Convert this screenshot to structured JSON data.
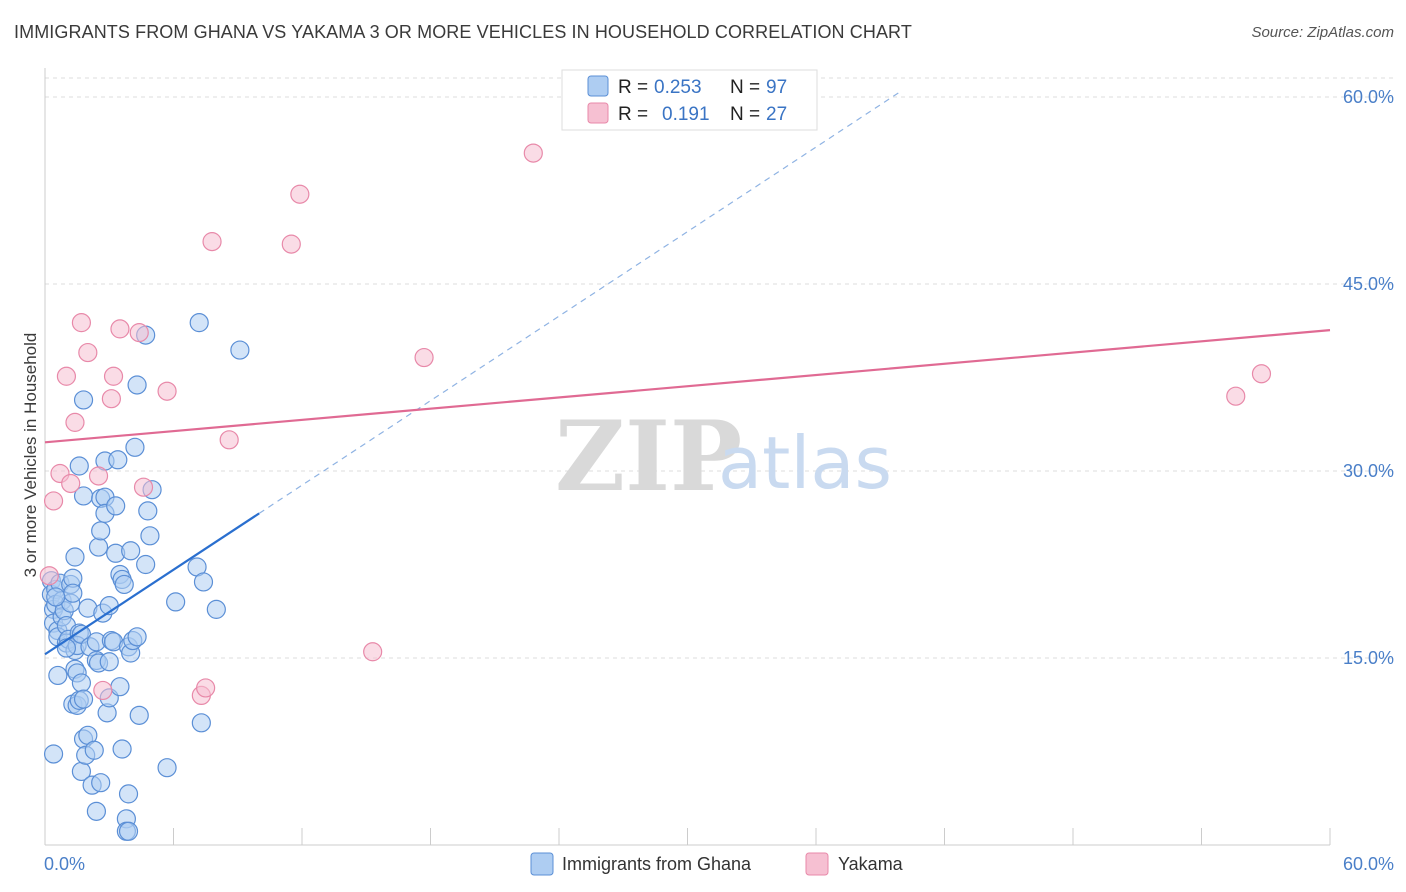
{
  "header": {
    "title": "IMMIGRANTS FROM GHANA VS YAKAMA 3 OR MORE VEHICLES IN HOUSEHOLD CORRELATION CHART",
    "source": "Source: ZipAtlas.com"
  },
  "watermark": {
    "zip": "ZIP",
    "atlas": "atlas"
  },
  "colors": {
    "ghana_fill": "#aecdf2",
    "ghana_stroke": "#5b8fd6",
    "ghana_line": "#2a6fcf",
    "yakama_fill": "#f6c0d2",
    "yakama_stroke": "#e889a9",
    "yakama_line": "#e06a93",
    "grid": "#dddddd",
    "axis_text": "#4a7fc8"
  },
  "legend": {
    "ghana": {
      "r_label": "R =",
      "r_value": "0.253",
      "n_label": "N =",
      "n_value": "97"
    },
    "yakama": {
      "r_label": "R =",
      "r_value": "0.191",
      "n_label": "N =",
      "n_value": "27"
    }
  },
  "chart_data": {
    "type": "scatter",
    "title": "IMMIGRANTS FROM GHANA VS YAKAMA 3 OR MORE VEHICLES IN HOUSEHOLD CORRELATION CHART",
    "xlabel": "",
    "ylabel": "3 or more Vehicles in Household",
    "xlim": [
      0,
      60
    ],
    "ylim": [
      0,
      63
    ],
    "x_tick_labels": [
      "0.0%",
      "60.0%"
    ],
    "y_ticks": [
      15,
      30,
      45,
      60
    ],
    "y_tick_labels": [
      "15.0%",
      "30.0%",
      "45.0%",
      "60.0%"
    ],
    "legend_position": "top-center",
    "bottom_legend": [
      "Immigrants from Ghana",
      "Yakama"
    ],
    "series": [
      {
        "name": "Immigrants from Ghana",
        "trend": {
          "x0": 0,
          "y0": 15.3,
          "x1": 10,
          "y1": 26.6,
          "dashed_to_x": 40
        },
        "points": [
          [
            0.3,
            21.2
          ],
          [
            0.3,
            20.1
          ],
          [
            0.4,
            18.9
          ],
          [
            0.4,
            17.8
          ],
          [
            0.5,
            20.5
          ],
          [
            0.5,
            19.3
          ],
          [
            0.6,
            17.2
          ],
          [
            0.6,
            16.7
          ],
          [
            0.7,
            21.0
          ],
          [
            0.8,
            19.6
          ],
          [
            0.8,
            18.3
          ],
          [
            0.9,
            18.8
          ],
          [
            1.0,
            17.6
          ],
          [
            1.0,
            16.2
          ],
          [
            1.1,
            16.5
          ],
          [
            1.2,
            20.9
          ],
          [
            1.2,
            19.4
          ],
          [
            1.3,
            21.4
          ],
          [
            1.4,
            15.6
          ],
          [
            1.4,
            14.1
          ],
          [
            1.3,
            11.3
          ],
          [
            1.5,
            13.8
          ],
          [
            1.5,
            11.2
          ],
          [
            0.4,
            7.3
          ],
          [
            0.6,
            13.6
          ],
          [
            1.3,
            20.2
          ],
          [
            1.4,
            23.1
          ],
          [
            1.6,
            30.4
          ],
          [
            1.6,
            17.0
          ],
          [
            1.5,
            16.0
          ],
          [
            1.7,
            16.9
          ],
          [
            1.7,
            13.0
          ],
          [
            1.6,
            11.6
          ],
          [
            1.8,
            11.7
          ],
          [
            1.7,
            5.9
          ],
          [
            1.8,
            28.0
          ],
          [
            1.8,
            8.5
          ],
          [
            1.9,
            7.2
          ],
          [
            2.0,
            8.8
          ],
          [
            2.0,
            19.0
          ],
          [
            2.1,
            15.9
          ],
          [
            2.2,
            4.8
          ],
          [
            2.3,
            7.6
          ],
          [
            2.4,
            2.7
          ],
          [
            2.4,
            16.3
          ],
          [
            2.4,
            14.8
          ],
          [
            2.5,
            14.6
          ],
          [
            2.5,
            23.9
          ],
          [
            2.6,
            25.2
          ],
          [
            2.6,
            5.0
          ],
          [
            2.6,
            27.8
          ],
          [
            2.7,
            18.6
          ],
          [
            2.8,
            27.9
          ],
          [
            2.8,
            26.6
          ],
          [
            2.8,
            30.8
          ],
          [
            2.9,
            10.6
          ],
          [
            3.0,
            14.7
          ],
          [
            3.0,
            11.8
          ],
          [
            3.0,
            19.2
          ],
          [
            1.8,
            35.7
          ],
          [
            3.1,
            16.4
          ],
          [
            3.2,
            16.3
          ],
          [
            3.3,
            23.4
          ],
          [
            3.3,
            27.2
          ],
          [
            3.4,
            30.9
          ],
          [
            3.5,
            21.7
          ],
          [
            3.5,
            12.7
          ],
          [
            3.6,
            21.3
          ],
          [
            3.6,
            7.7
          ],
          [
            3.7,
            20.9
          ],
          [
            3.8,
            2.1
          ],
          [
            3.8,
            1.1
          ],
          [
            3.9,
            1.1
          ],
          [
            3.9,
            4.1
          ],
          [
            3.9,
            15.9
          ],
          [
            4.0,
            15.4
          ],
          [
            4.0,
            23.6
          ],
          [
            4.1,
            16.4
          ],
          [
            4.2,
            31.9
          ],
          [
            4.3,
            16.7
          ],
          [
            4.3,
            36.9
          ],
          [
            4.4,
            10.4
          ],
          [
            4.7,
            22.5
          ],
          [
            4.7,
            40.9
          ],
          [
            4.8,
            26.8
          ],
          [
            4.9,
            24.8
          ],
          [
            5.0,
            28.5
          ],
          [
            5.7,
            6.2
          ],
          [
            6.1,
            19.5
          ],
          [
            7.1,
            22.3
          ],
          [
            7.2,
            41.9
          ],
          [
            7.3,
            9.8
          ],
          [
            7.4,
            21.1
          ],
          [
            8.0,
            18.9
          ],
          [
            9.1,
            39.7
          ],
          [
            0.5,
            19.9
          ],
          [
            1.0,
            15.8
          ]
        ]
      },
      {
        "name": "Yakama",
        "trend": {
          "x0": 0,
          "y0": 32.3,
          "x1": 60,
          "y1": 41.3
        },
        "points": [
          [
            0.2,
            21.6
          ],
          [
            0.4,
            27.6
          ],
          [
            0.7,
            29.8
          ],
          [
            1.0,
            37.6
          ],
          [
            1.2,
            29.0
          ],
          [
            1.4,
            33.9
          ],
          [
            1.7,
            41.9
          ],
          [
            2.0,
            39.5
          ],
          [
            2.5,
            29.6
          ],
          [
            2.7,
            12.4
          ],
          [
            3.1,
            35.8
          ],
          [
            3.2,
            37.6
          ],
          [
            3.5,
            41.4
          ],
          [
            4.4,
            41.1
          ],
          [
            4.6,
            28.7
          ],
          [
            5.7,
            36.4
          ],
          [
            7.3,
            12.0
          ],
          [
            7.5,
            12.6
          ],
          [
            7.8,
            48.4
          ],
          [
            8.6,
            32.5
          ],
          [
            11.5,
            48.2
          ],
          [
            11.9,
            52.2
          ],
          [
            15.3,
            15.5
          ],
          [
            17.7,
            39.1
          ],
          [
            22.8,
            55.5
          ],
          [
            55.6,
            36.0
          ],
          [
            56.8,
            37.8
          ]
        ]
      }
    ]
  }
}
